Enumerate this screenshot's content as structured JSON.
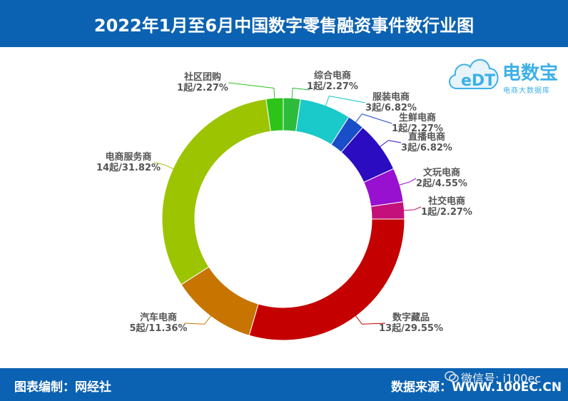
{
  "header": {
    "title": "2022年1月至6月中国数字零售融资事件数行业图"
  },
  "footer": {
    "left": "图表编制：网经社",
    "right": "数据来源：WWW.100EC.CN"
  },
  "watermark": {
    "text": "微信号: i100ec"
  },
  "logo": {
    "name": "电数宝",
    "subtitle": "电商大数据库",
    "mark": "eDT"
  },
  "colors": {
    "header_bg": "#0b62b2",
    "slices": [
      "#2dbb3c",
      "#1ac9c9",
      "#1a4ec9",
      "#2b0cc0",
      "#9810d0",
      "#c3107a",
      "#c40000",
      "#c77400",
      "#9cc400",
      "#2dc41a"
    ]
  },
  "chart_data": {
    "type": "pie",
    "donut": true,
    "start_angle_deg": 0,
    "direction": "clockwise",
    "slices": [
      {
        "name": "综合电商",
        "label": "1起/2.27%",
        "value": 1,
        "percent": 2.27,
        "color": "#2dbb3c"
      },
      {
        "name": "服装电商",
        "label": "3起/6.82%",
        "value": 3,
        "percent": 6.82,
        "color": "#1ac9c9"
      },
      {
        "name": "生鲜电商",
        "label": "1起/2.27%",
        "value": 1,
        "percent": 2.27,
        "color": "#1a4ec9"
      },
      {
        "name": "直播电商",
        "label": "3起/6.82%",
        "value": 3,
        "percent": 6.82,
        "color": "#2b0cc0"
      },
      {
        "name": "文玩电商",
        "label": "2起/4.55%",
        "value": 2,
        "percent": 4.55,
        "color": "#9810d0"
      },
      {
        "name": "社交电商",
        "label": "1起/2.27%",
        "value": 1,
        "percent": 2.27,
        "color": "#c3107a"
      },
      {
        "name": "数字藏品",
        "label": "13起/29.55%",
        "value": 13,
        "percent": 29.55,
        "color": "#c40000"
      },
      {
        "name": "汽车电商",
        "label": "5起/11.36%",
        "value": 5,
        "percent": 11.36,
        "color": "#c77400"
      },
      {
        "name": "电商服务商",
        "label": "14起/31.82%",
        "value": 14,
        "percent": 31.82,
        "color": "#9cc400"
      },
      {
        "name": "社区团购",
        "label": "1起/2.27%",
        "value": 1,
        "percent": 2.27,
        "color": "#2dc41a"
      }
    ]
  }
}
